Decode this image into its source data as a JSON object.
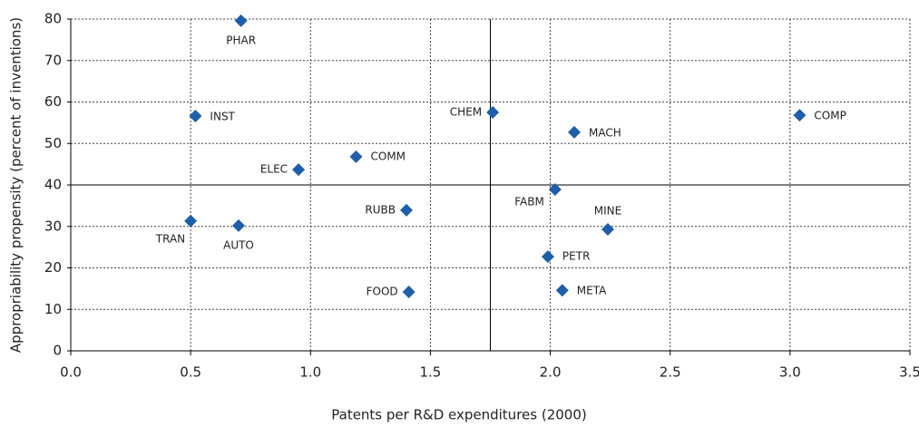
{
  "chart_data": {
    "type": "scatter",
    "xlabel": "Patents per R&D expenditures (2000)",
    "ylabel": "Appropriability propensity (percent of inventions)",
    "labels": [
      "PHAR",
      "INST",
      "CHEM",
      "COMP",
      "MACH",
      "COMM",
      "ELEC",
      "FABM",
      "RUBB",
      "TRAN",
      "AUTO",
      "MINE",
      "PETR",
      "FOOD",
      "META"
    ],
    "x": [
      0.71,
      0.52,
      1.76,
      3.04,
      2.1,
      1.19,
      0.95,
      2.02,
      1.4,
      0.5,
      0.7,
      2.24,
      1.99,
      1.41,
      2.05
    ],
    "values": [
      79.6,
      56.6,
      57.5,
      56.8,
      52.7,
      46.8,
      43.7,
      38.9,
      33.9,
      31.3,
      30.2,
      29.3,
      22.7,
      14.2,
      14.6
    ],
    "color": "#1f5ea8",
    "xlim": [
      0,
      3.5
    ],
    "xticks": [
      {
        "value": 0,
        "label": "0.0"
      },
      0.5,
      {
        "value": 1,
        "label": "1.0"
      },
      1.5,
      {
        "value": 2,
        "label": "2.0"
      },
      2.5,
      {
        "value": 3,
        "label": "3.0"
      },
      3.5
    ],
    "ylim": [
      0,
      80
    ],
    "yticks": [
      0,
      10,
      20,
      30,
      40,
      50,
      60,
      70,
      80
    ],
    "grid": true,
    "vline": 1.75,
    "hline": 40
  }
}
